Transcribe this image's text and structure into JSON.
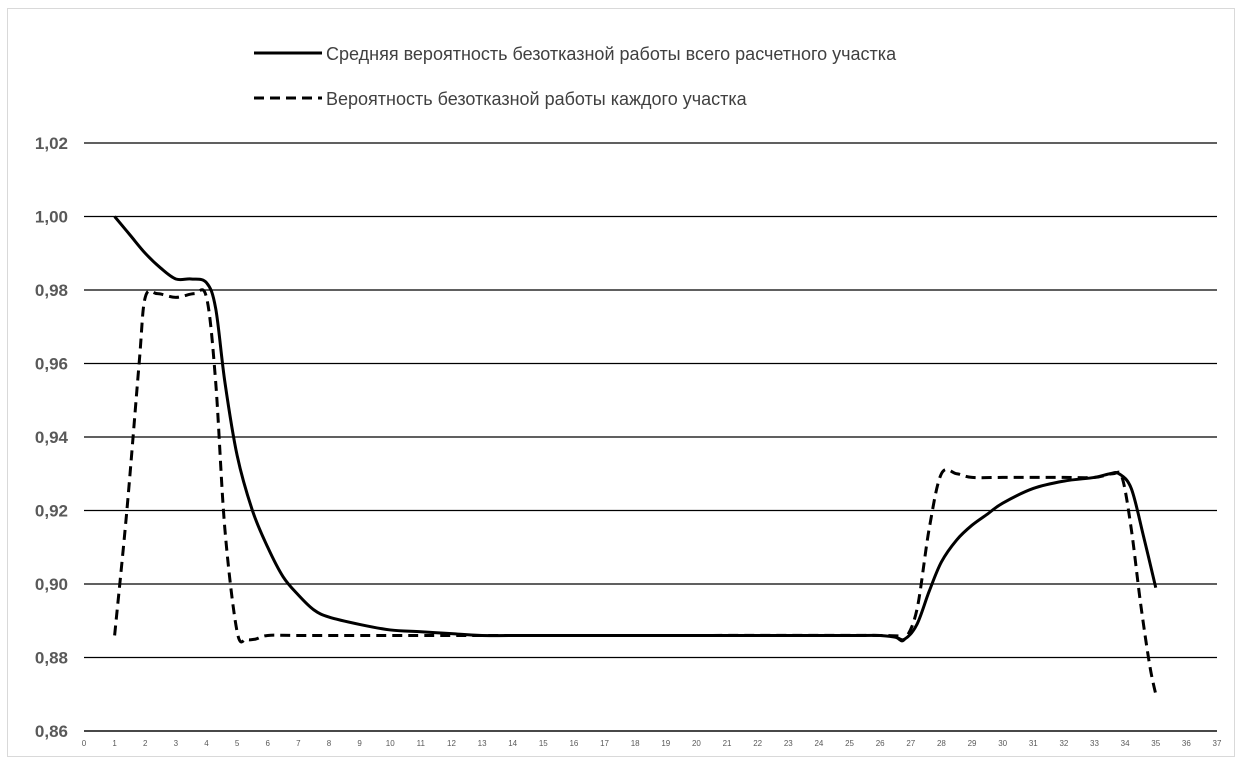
{
  "chart_data": {
    "type": "line",
    "title": "",
    "xlabel": "",
    "ylabel": "",
    "xlim": [
      0,
      37
    ],
    "ylim": [
      0.86,
      1.02
    ],
    "y_ticks": [
      "0,86",
      "0,88",
      "0,90",
      "0,92",
      "0,94",
      "0,96",
      "0,98",
      "1,00",
      "1,02"
    ],
    "x_ticks": [
      "0",
      "1",
      "2",
      "3",
      "4",
      "5",
      "6",
      "7",
      "8",
      "9",
      "10",
      "11",
      "12",
      "13",
      "14",
      "15",
      "16",
      "17",
      "18",
      "19",
      "20",
      "21",
      "22",
      "23",
      "24",
      "25",
      "26",
      "27",
      "28",
      "29",
      "30",
      "31",
      "32",
      "33",
      "34",
      "35",
      "36",
      "37"
    ],
    "grid": "horizontal",
    "legend_position": "top",
    "series": [
      {
        "name": "Средняя вероятность безотказной работы всего расчетного участка",
        "style": "solid",
        "color": "#000000",
        "x": [
          1,
          1.5,
          2,
          2.5,
          3,
          3.5,
          4,
          4.3,
          4.6,
          5,
          5.5,
          6,
          6.5,
          7,
          7.5,
          8,
          9,
          10,
          11,
          12,
          13,
          15,
          20,
          25,
          26,
          26.5,
          26.8,
          27.2,
          27.6,
          28,
          28.5,
          29,
          29.5,
          30,
          31,
          32,
          33,
          33.5,
          33.8,
          34.2,
          34.6,
          35
        ],
        "y": [
          1.0,
          0.995,
          0.99,
          0.986,
          0.983,
          0.983,
          0.982,
          0.975,
          0.955,
          0.935,
          0.92,
          0.91,
          0.902,
          0.897,
          0.893,
          0.891,
          0.889,
          0.8875,
          0.887,
          0.8865,
          0.886,
          0.886,
          0.886,
          0.886,
          0.886,
          0.8855,
          0.885,
          0.889,
          0.898,
          0.906,
          0.912,
          0.916,
          0.919,
          0.922,
          0.926,
          0.928,
          0.929,
          0.93,
          0.93,
          0.926,
          0.913,
          0.899
        ]
      },
      {
        "name": "Вероятность безотказной работы каждого участка",
        "style": "dashed",
        "color": "#000000",
        "x": [
          1,
          1.4,
          1.8,
          2,
          2.4,
          3,
          3.6,
          4,
          4.3,
          4.6,
          5,
          5.3,
          5.6,
          6,
          7,
          10,
          15,
          20,
          26,
          26.5,
          26.8,
          27.2,
          27.6,
          28,
          28.5,
          29,
          30,
          31,
          32,
          33,
          33.6,
          33.9,
          34.2,
          34.5,
          34.8,
          35
        ],
        "y": [
          0.886,
          0.92,
          0.96,
          0.978,
          0.979,
          0.978,
          0.979,
          0.978,
          0.955,
          0.915,
          0.887,
          0.885,
          0.885,
          0.886,
          0.886,
          0.886,
          0.886,
          0.886,
          0.886,
          0.8855,
          0.885,
          0.893,
          0.915,
          0.93,
          0.93,
          0.929,
          0.929,
          0.929,
          0.929,
          0.929,
          0.93,
          0.929,
          0.915,
          0.895,
          0.878,
          0.87
        ]
      }
    ]
  }
}
